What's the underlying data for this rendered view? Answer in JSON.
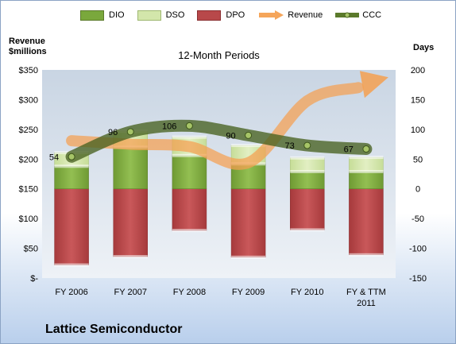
{
  "legend": [
    {
      "name": "DIO",
      "color": "#7aa83c",
      "kind": "bar"
    },
    {
      "name": "DSO",
      "color": "#d3e6ab",
      "kind": "bar"
    },
    {
      "name": "DPO",
      "color": "#b8484a",
      "kind": "bar"
    },
    {
      "name": "Revenue",
      "color": "#f5a55a",
      "kind": "arrow"
    },
    {
      "name": "CCC",
      "color": "#5b7a2b",
      "kind": "line"
    }
  ],
  "left_axis_title_line1": "Revenue",
  "left_axis_title_line2": "$millions",
  "right_axis_title": "Days",
  "company": "Lattice Semiconductor",
  "chart_data": {
    "type": "bar",
    "title": "12-Month Periods",
    "categories": [
      "FY 2006",
      "FY 2007",
      "FY 2008",
      "FY 2009",
      "FY 2010",
      "FY & TTM 2011"
    ],
    "left_axis": {
      "label": "Revenue $millions",
      "min": 0,
      "max": 350,
      "step": 50,
      "tick_labels": [
        "$-",
        "$50",
        "$100",
        "$150",
        "$200",
        "$250",
        "$300",
        "$350"
      ]
    },
    "right_axis": {
      "label": "Days",
      "min": -150,
      "max": 200,
      "step": 50,
      "tick_labels": [
        "-150",
        "-100",
        "-50",
        "0",
        "50",
        "100",
        "150",
        "200"
      ]
    },
    "series": [
      {
        "name": "DIO",
        "axis": "days",
        "values": [
          38,
          70,
          56,
          42,
          29,
          29
        ]
      },
      {
        "name": "DSO",
        "axis": "days",
        "values": [
          23,
          27,
          31,
          31,
          23,
          24
        ]
      },
      {
        "name": "DPO",
        "axis": "days",
        "values": [
          -128,
          -114,
          -70,
          -115,
          -69,
          -111
        ]
      },
      {
        "name": "Revenue",
        "axis": "revenue",
        "values": [
          231,
          225,
          221,
          194,
          298,
          327
        ]
      },
      {
        "name": "CCC",
        "axis": "days",
        "values": [
          54,
          96,
          106,
          90,
          73,
          67
        ]
      }
    ],
    "data_labels": [
      "54",
      "96",
      "106",
      "90",
      "73",
      "67"
    ],
    "grid": false,
    "legend_position": "top"
  }
}
